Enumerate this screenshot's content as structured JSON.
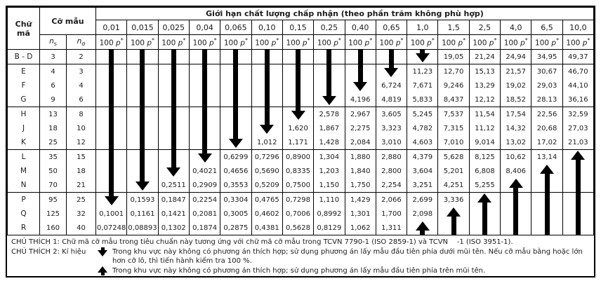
{
  "header": {
    "code_label": "Chữ mã",
    "sample_size_label": "Cỡ mẫu",
    "n_symbol": "n",
    "sub_s": "s",
    "sub_sigma": "σ",
    "title": "Giới hạn chất lượng chấp nhận (theo phần trăm không phù hợp)",
    "per_column_num": "100",
    "per_column_sym": "p",
    "per_column_star": "*"
  },
  "chart_data": {
    "type": "table",
    "columns": [
      "0,01",
      "0,015",
      "0,025",
      "0,04",
      "0,065",
      "0,10",
      "0,15",
      "0,25",
      "0,40",
      "0,65",
      "1,0",
      "1,5",
      "2,5",
      "4,0",
      "6,5",
      "10,0"
    ],
    "rows": [
      {
        "code": "B - D",
        "ns": "3",
        "nsigma": "2",
        "values": {
          "11": "19,05",
          "12": "21,24",
          "13": "24,94",
          "14": "34,95",
          "15": "49,37"
        }
      },
      {
        "code": "E",
        "ns": "4",
        "nsigma": "3",
        "values": {
          "10": "11,23",
          "11": "12,70",
          "12": "15,13",
          "13": "21,57",
          "14": "30,67",
          "15": "46,70"
        }
      },
      {
        "code": "F",
        "ns": "6",
        "nsigma": "4",
        "values": {
          "9": "6,724",
          "10": "7,671",
          "11": "9,246",
          "12": "13,29",
          "13": "19,02",
          "14": "29,03",
          "15": "44,10"
        }
      },
      {
        "code": "G",
        "ns": "9",
        "nsigma": "6",
        "values": {
          "8": "4,196",
          "9": "4,819",
          "10": "5,833",
          "11": "8,437",
          "12": "12,12",
          "13": "18,52",
          "14": "28.13",
          "15": "36,16"
        }
      },
      {
        "code": "H",
        "ns": "13",
        "nsigma": "8",
        "values": {
          "7": "2,578",
          "8": "2,967",
          "9": "3,605",
          "10": "5,245",
          "11": "7,537",
          "12": "11,54",
          "13": "17,54",
          "14": "22,56",
          "15": "32,59"
        }
      },
      {
        "code": "J",
        "ns": "18",
        "nsigma": "10",
        "values": {
          "6": "1,620",
          "7": "1,867",
          "8": "2,275",
          "9": "3,323",
          "10": "4,782",
          "11": "7,315",
          "12": "11,12",
          "13": "14,32",
          "14": "20,68",
          "15": "27,03"
        }
      },
      {
        "code": "K",
        "ns": "25",
        "nsigma": "12",
        "values": {
          "5": "1,012",
          "6": "1,171",
          "7": "1,428",
          "8": "2,084",
          "9": "3,010",
          "10": "4,603",
          "11": "7,010",
          "12": "9,014",
          "13": "13,02",
          "14": "17,02",
          "15": "21,03"
        }
      },
      {
        "code": "L",
        "ns": "35",
        "nsigma": "15",
        "values": {
          "4": "0,6299",
          "5": "0,7296",
          "6": "0,8900",
          "7": "1,304",
          "8": "1,880",
          "9": "2,880",
          "10": "4,379",
          "11": "5,628",
          "12": "8,125",
          "13": "10,62",
          "14": "13,14"
        }
      },
      {
        "code": "M",
        "ns": "50",
        "nsigma": "18",
        "values": {
          "3": "0,4021",
          "4": "0,4656",
          "5": "0,5690",
          "6": "0,8335",
          "7": "1,203",
          "8": "1,840",
          "9": "2,800",
          "10": "3,604",
          "11": "5,201",
          "12": "6,808",
          "13": "8,406"
        }
      },
      {
        "code": "N",
        "ns": "70",
        "nsigma": "21",
        "values": {
          "2": "0,2511",
          "3": "0,2909",
          "4": "0,3553",
          "5": "0,5209",
          "6": "0,7500",
          "7": "1,150",
          "8": "1,750",
          "9": "2,254",
          "10": "3,251",
          "11": "4,251",
          "12": "5,255"
        }
      },
      {
        "code": "P",
        "ns": "95",
        "nsigma": "25",
        "values": {
          "1": "0,1593",
          "2": "0,1847",
          "3": "0,2254",
          "4": "0,3304",
          "5": "0,4765",
          "6": "0,7298",
          "7": "1,110",
          "8": "1,429",
          "9": "2,066",
          "10": "2,699",
          "11": "3,336"
        }
      },
      {
        "code": "Q",
        "ns": "125",
        "nsigma": "32",
        "values": {
          "0": "0,1001",
          "1": "0,1161",
          "2": "0,1421",
          "3": "0,2081",
          "4": "0,3005",
          "5": "0,4602",
          "6": "0,7006",
          "7": "0,8992",
          "8": "1,301",
          "9": "1,700",
          "10": "2,098"
        }
      },
      {
        "code": "R",
        "ns": "160",
        "nsigma": "40",
        "values": {
          "0": "0,07248",
          "1": "0,08893",
          "2": "0,1302",
          "3": "0,1874",
          "4": "0,2875",
          "5": "0,4381",
          "6": "0,5628",
          "7": "0,8129",
          "8": "1,062",
          "9": "1,311"
        }
      }
    ],
    "down_arrows": [
      {
        "col": 0,
        "tip_row": 10
      },
      {
        "col": 1,
        "tip_row": 9
      },
      {
        "col": 2,
        "tip_row": 8
      },
      {
        "col": 3,
        "tip_row": 7
      },
      {
        "col": 4,
        "tip_row": 6
      },
      {
        "col": 5,
        "tip_row": 5
      },
      {
        "col": 6,
        "tip_row": 4
      },
      {
        "col": 7,
        "tip_row": 3
      },
      {
        "col": 8,
        "tip_row": 2
      },
      {
        "col": 9,
        "tip_row": 1
      },
      {
        "col": 10,
        "tip_row": 0
      }
    ],
    "up_arrows": [
      {
        "col": 10,
        "tip_row": 12
      },
      {
        "col": 11,
        "tip_row": 11
      },
      {
        "col": 12,
        "tip_row": 10
      },
      {
        "col": 13,
        "tip_row": 9
      },
      {
        "col": 14,
        "tip_row": 8
      },
      {
        "col": 15,
        "tip_row": 7
      }
    ],
    "group_starts": [
      1,
      4,
      7,
      10
    ],
    "title": "Giới hạn chất lượng chấp nhận (theo phần trăm không phù hợp)"
  },
  "notes": {
    "note1_label": "CHÚ THÍCH 1:",
    "note1_text": "Chữ mã cỡ mẫu trong tiêu chuẩn này tương ứng với chữ mã cỡ mẫu trong TCVN 7790-1 (ISO 2859-1) và TCVN    -1 (ISO 3951-1).",
    "note2_label": "CHÚ THÍCH 2: Kí hiệu",
    "down_arrow_text": "Trong khu vực này không có phương án thích hợp; sử dụng phương án lấy mẫu đầu tiên phía dưới mũi tên. Nếu cỡ mẫu bằng hoặc lớn hơn cỡ lô, thì tiến hành kiểm tra 100 %.",
    "up_arrow_text": "Trong khu vực này không có phương án thích hợp; sử dụng phương án lấy mẫu đầu tiên phía trên mũi tên."
  },
  "colors": {
    "border": "#000000",
    "background": "#ffffff",
    "text": "#1b1b1b"
  }
}
